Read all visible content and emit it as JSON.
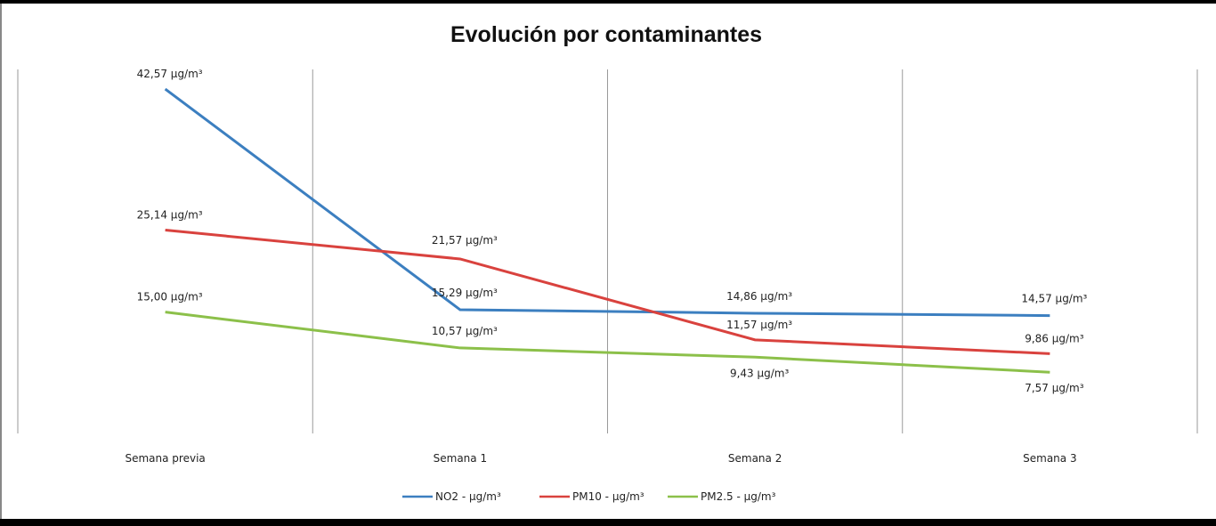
{
  "chart_data": {
    "type": "line",
    "title": "Evolución por contaminantes",
    "xlabel": "",
    "ylabel": "",
    "ylim": [
      0,
      45
    ],
    "grid": "vertical",
    "legend": "bottom",
    "categories": [
      "Semana previa",
      "Semana 1",
      "Semana 2",
      "Semana 3"
    ],
    "series": [
      {
        "name": "NO2 - µg/m³",
        "color": "#3c7fc0",
        "values": [
          42.57,
          15.29,
          14.86,
          14.57
        ],
        "labels": [
          "42,57  µg/m³",
          "15,29  µg/m³",
          "14,86  µg/m³",
          "14,57  µg/m³"
        ]
      },
      {
        "name": "PM10 - µg/m³",
        "color": "#d9423e",
        "values": [
          25.14,
          21.57,
          11.57,
          9.86
        ],
        "labels": [
          "25,14  µg/m³",
          "21,57  µg/m³",
          "11,57  µg/m³",
          "9,86  µg/m³"
        ]
      },
      {
        "name": "PM2.5 - µg/m³",
        "color": "#8cc04a",
        "values": [
          15.0,
          10.57,
          9.43,
          7.57
        ],
        "labels": [
          "15,00  µg/m³",
          "10,57  µg/m³",
          "9,43  µg/m³",
          "7,57  µg/m³"
        ]
      }
    ]
  }
}
